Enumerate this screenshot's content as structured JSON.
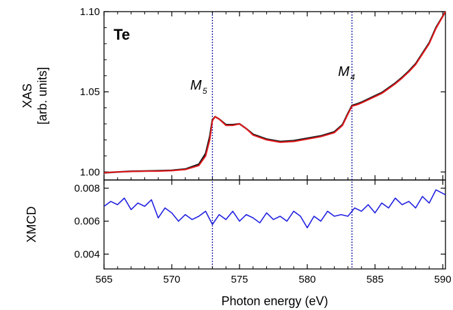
{
  "chart_data": [
    {
      "type": "line",
      "panel": "xas",
      "panel_label": "Te",
      "ylabel_lines": [
        "XAS",
        "[arb. units]"
      ],
      "xlim": [
        565,
        590.2
      ],
      "ylim": [
        0.995,
        1.1
      ],
      "yticks": [
        "1.00",
        "1.05",
        "1.10"
      ],
      "ytick_values": [
        1.0,
        1.05,
        1.1
      ],
      "x": [
        565,
        566,
        567,
        568,
        569,
        570,
        571,
        572,
        572.5,
        572.8,
        573.0,
        573.2,
        573.5,
        574,
        574.5,
        575,
        575.5,
        576,
        577,
        578,
        579,
        580,
        581,
        582,
        582.6,
        583.0,
        583.3,
        583.7,
        584,
        584.5,
        585,
        585.5,
        586,
        586.5,
        587,
        587.5,
        588,
        588.5,
        589,
        589.5,
        590.2
      ],
      "series": [
        {
          "color": "#e3191c",
          "values": [
            0.9995,
            1.0,
            1.0003,
            1.0005,
            1.0005,
            1.0008,
            1.0015,
            1.004,
            1.01,
            1.02,
            1.032,
            1.0345,
            1.033,
            1.029,
            1.029,
            1.03,
            1.027,
            1.023,
            1.02,
            1.0185,
            1.019,
            1.0205,
            1.022,
            1.0245,
            1.029,
            1.036,
            1.041,
            1.042,
            1.043,
            1.045,
            1.047,
            1.049,
            1.052,
            1.055,
            1.0585,
            1.0625,
            1.067,
            1.0735,
            1.08,
            1.0895,
            1.1
          ]
        },
        {
          "color": "#1a1a1a",
          "values": [
            0.9995,
            1.0,
            1.0004,
            1.0006,
            1.0007,
            1.001,
            1.0018,
            1.0048,
            1.0115,
            1.022,
            1.0325,
            1.0345,
            1.033,
            1.0295,
            1.0295,
            1.03,
            1.027,
            1.0235,
            1.0205,
            1.019,
            1.0195,
            1.021,
            1.0225,
            1.025,
            1.0295,
            1.0365,
            1.0415,
            1.0425,
            1.0435,
            1.0455,
            1.0475,
            1.0495,
            1.0525,
            1.0555,
            1.059,
            1.063,
            1.0675,
            1.074,
            1.0805,
            1.09,
            1.1
          ]
        }
      ],
      "edges": [
        {
          "label": "M",
          "subscript": "5",
          "x": 573.0
        },
        {
          "label": "M",
          "subscript": "4",
          "x": 583.3
        }
      ]
    },
    {
      "type": "line",
      "panel": "xmcd",
      "ylabel": "XMCD",
      "xlabel": "Photon energy (eV)",
      "xlim": [
        565,
        590.2
      ],
      "ylim": [
        0.0031,
        0.0085
      ],
      "xticks": [
        "565",
        "570",
        "575",
        "580",
        "585",
        "590"
      ],
      "xtick_values": [
        565,
        570,
        575,
        580,
        585,
        590
      ],
      "yticks": [
        "0.004",
        "0.006",
        "0.008"
      ],
      "ytick_values": [
        0.004,
        0.006,
        0.008
      ],
      "x": [
        565,
        565.5,
        566,
        566.5,
        567,
        567.5,
        568,
        568.5,
        569,
        569.5,
        570,
        570.5,
        571,
        571.5,
        572,
        572.5,
        573,
        573.5,
        574,
        574.5,
        575,
        575.5,
        576,
        576.5,
        577,
        577.5,
        578,
        578.5,
        579,
        579.5,
        580,
        580.5,
        581,
        581.5,
        582,
        582.5,
        583,
        583.5,
        584,
        584.5,
        585,
        585.5,
        586,
        586.5,
        587,
        587.5,
        588,
        588.5,
        589,
        589.5,
        590.2
      ],
      "series": [
        {
          "color": "#1f1fe0",
          "values": [
            0.0069,
            0.0072,
            0.007,
            0.0074,
            0.0067,
            0.0071,
            0.0069,
            0.0073,
            0.0062,
            0.0068,
            0.0065,
            0.006,
            0.0064,
            0.0061,
            0.0063,
            0.0066,
            0.0058,
            0.0064,
            0.0061,
            0.0066,
            0.006,
            0.0064,
            0.0062,
            0.0059,
            0.0065,
            0.0061,
            0.0063,
            0.006,
            0.0066,
            0.0063,
            0.0056,
            0.0063,
            0.006,
            0.0066,
            0.0063,
            0.0064,
            0.0063,
            0.0068,
            0.0066,
            0.007,
            0.0065,
            0.0071,
            0.0068,
            0.0074,
            0.007,
            0.0072,
            0.0068,
            0.0075,
            0.0071,
            0.0079,
            0.0076
          ]
        }
      ]
    }
  ]
}
